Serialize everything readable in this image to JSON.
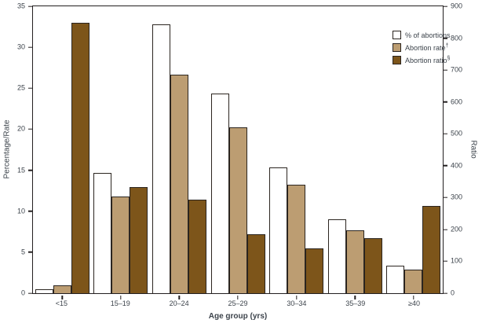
{
  "figure": {
    "x_axis_title": "Age group (yrs)",
    "left_axis_title": "Percentage/Rate",
    "right_axis_title": "Ratio",
    "left_ticks": [
      0,
      5,
      10,
      15,
      20,
      25,
      30,
      35
    ],
    "right_ticks": [
      0,
      100,
      200,
      300,
      400,
      500,
      600,
      700,
      800,
      900
    ]
  },
  "legend": {
    "items": [
      {
        "label": "% of abortions",
        "sup": "",
        "color": "#ffffff"
      },
      {
        "label": "Abortion rate",
        "sup": "†",
        "color": "#bc9d72"
      },
      {
        "label": "Abortion ratio",
        "sup": "§",
        "color": "#7d551a"
      }
    ]
  },
  "colors": {
    "axis_line": "#231f20",
    "bar_border": "#2b2520",
    "text": "#3c434b",
    "percent_fill": "#ffffff",
    "rate_fill": "#bc9d72",
    "ratio_fill": "#7d551a"
  },
  "chart_data": {
    "type": "bar",
    "categories": [
      "<15",
      "15–19",
      "20–24",
      "25–29",
      "30–34",
      "35–39",
      "≥40"
    ],
    "series": [
      {
        "name": "% of abortions",
        "axis": "left",
        "color": "#ffffff",
        "values": [
          0.5,
          14.7,
          32.8,
          24.4,
          15.3,
          9.0,
          3.4
        ]
      },
      {
        "name": "Abortion rate",
        "axis": "left",
        "color": "#bc9d72",
        "values": [
          1.0,
          11.8,
          26.7,
          20.2,
          13.2,
          7.7,
          2.9
        ]
      },
      {
        "name": "Abortion ratio",
        "axis": "right",
        "color": "#7d551a",
        "values": [
          849,
          332,
          293,
          186,
          141,
          173,
          273
        ]
      }
    ],
    "left_axis": {
      "label": "Percentage/Rate",
      "range": [
        0,
        35
      ]
    },
    "right_axis": {
      "label": "Ratio",
      "range": [
        0,
        900
      ]
    },
    "xlabel": "Age group (yrs)",
    "title": "",
    "grid": false,
    "legend_position": "top-right"
  }
}
